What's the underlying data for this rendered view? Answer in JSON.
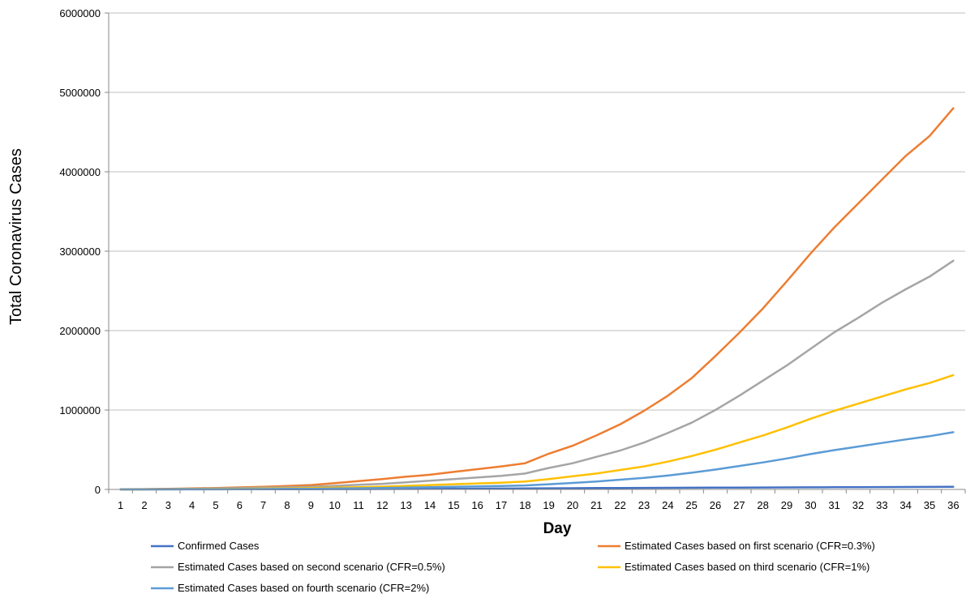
{
  "chart_data": {
    "type": "line",
    "title": "",
    "xlabel": "Day",
    "ylabel": "Total Coronavirus Cases",
    "ylim": [
      0,
      6000000
    ],
    "yticks": [
      "0",
      "1000000",
      "2000000",
      "3000000",
      "4000000",
      "5000000",
      "6000000"
    ],
    "x": [
      1,
      2,
      3,
      4,
      5,
      6,
      7,
      8,
      9,
      10,
      11,
      12,
      13,
      14,
      15,
      16,
      17,
      18,
      19,
      20,
      21,
      22,
      23,
      24,
      25,
      26,
      27,
      28,
      29,
      30,
      31,
      32,
      33,
      34,
      35,
      36
    ],
    "grid": "horizontal",
    "legend_position": "bottom",
    "series": [
      {
        "name": "Confirmed Cases",
        "color": "#4472C4",
        "values": [
          200,
          500,
          800,
          1100,
          1500,
          2000,
          2400,
          2800,
          3200,
          3700,
          4300,
          5000,
          6000,
          7000,
          8000,
          9500,
          11000,
          12500,
          14000,
          15500,
          17000,
          18500,
          19500,
          20500,
          21500,
          22500,
          23500,
          24500,
          25500,
          26500,
          27500,
          28500,
          29500,
          30500,
          31500,
          32500
        ]
      },
      {
        "name": "Estimated Cases based on first scenario (CFR=0.3%)",
        "color": "#ED7D31",
        "values": [
          2000,
          4000,
          8000,
          12000,
          18000,
          25000,
          33000,
          43000,
          55000,
          80000,
          105000,
          130000,
          160000,
          185000,
          220000,
          255000,
          290000,
          330000,
          450000,
          550000,
          680000,
          820000,
          990000,
          1180000,
          1400000,
          1680000,
          1970000,
          2280000,
          2620000,
          2970000,
          3300000,
          3600000,
          3900000,
          4200000,
          4450000,
          4800000
        ]
      },
      {
        "name": "Estimated Cases based on second scenario (CFR=0.5%)",
        "color": "#A5A5A5",
        "values": [
          1000,
          2500,
          5000,
          8000,
          12000,
          16000,
          22000,
          28000,
          34000,
          45000,
          58000,
          70000,
          90000,
          110000,
          130000,
          150000,
          170000,
          200000,
          270000,
          330000,
          410000,
          490000,
          590000,
          710000,
          840000,
          1000000,
          1180000,
          1370000,
          1560000,
          1770000,
          1980000,
          2160000,
          2350000,
          2520000,
          2680000,
          2880000
        ]
      },
      {
        "name": "Estimated Cases based on third scenario (CFR=1%)",
        "color": "#FFC000",
        "values": [
          500,
          1200,
          2500,
          4000,
          6000,
          8000,
          11000,
          14000,
          17000,
          23000,
          29000,
          35000,
          45000,
          55000,
          65000,
          75000,
          85000,
          100000,
          130000,
          165000,
          200000,
          245000,
          290000,
          350000,
          420000,
          500000,
          590000,
          680000,
          780000,
          890000,
          990000,
          1080000,
          1170000,
          1260000,
          1340000,
          1440000
        ]
      },
      {
        "name": "Estimated Cases based on fourth scenario (CFR=2%)",
        "color": "#5B9BD5",
        "values": [
          250,
          600,
          1200,
          2000,
          3000,
          4000,
          5500,
          7000,
          8500,
          11500,
          14500,
          17500,
          22500,
          27500,
          32500,
          37500,
          42500,
          50000,
          65000,
          82000,
          100000,
          122000,
          145000,
          175000,
          210000,
          250000,
          295000,
          340000,
          390000,
          445000,
          495000,
          540000,
          585000,
          630000,
          670000,
          720000
        ]
      }
    ]
  }
}
